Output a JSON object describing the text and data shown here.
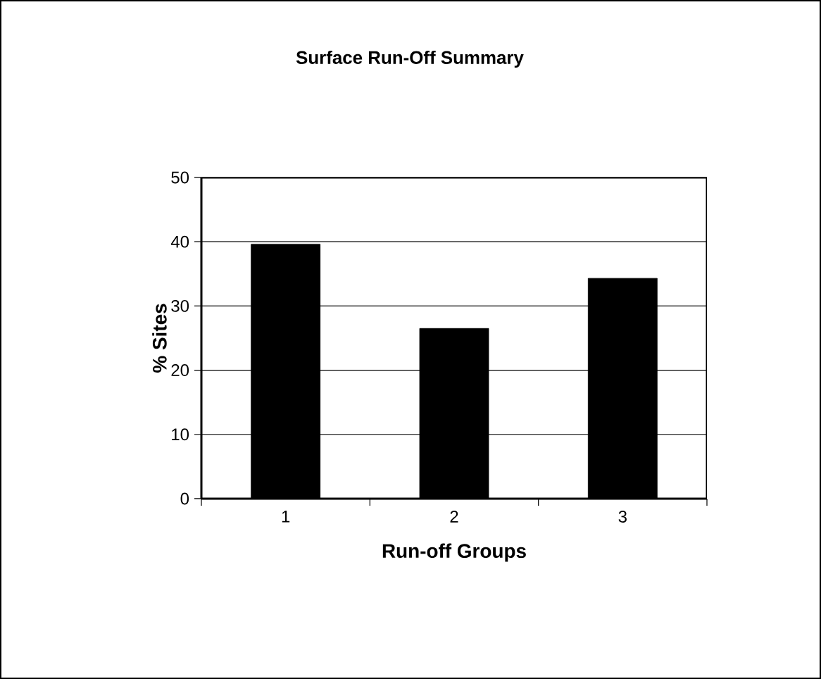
{
  "chart_data": {
    "type": "bar",
    "title": "Surface Run-Off Summary",
    "xlabel": "Run-off Groups",
    "ylabel": "% Sites",
    "categories": [
      "1",
      "2",
      "3"
    ],
    "values": [
      39.6,
      26.5,
      34.3
    ],
    "color": "#000000",
    "ylim": [
      0,
      50
    ],
    "yticks": [
      0,
      10,
      20,
      30,
      40,
      50
    ],
    "grid": "y"
  }
}
